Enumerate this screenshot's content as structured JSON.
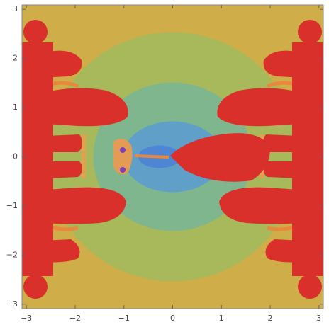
{
  "chart_data": {
    "type": "density",
    "xlim": [
      -3.09,
      3.09
    ],
    "ylim": [
      -3.09,
      3.09
    ],
    "xticks": [
      {
        "value": -3,
        "label": "−3"
      },
      {
        "value": -2,
        "label": "−2"
      },
      {
        "value": -1,
        "label": "−1"
      },
      0,
      1,
      2,
      3
    ],
    "yticks": [
      {
        "value": -3,
        "label": "−3"
      },
      {
        "value": -2,
        "label": "−2"
      },
      {
        "value": -1,
        "label": "−1"
      },
      0,
      1,
      2,
      3
    ]
  }
}
